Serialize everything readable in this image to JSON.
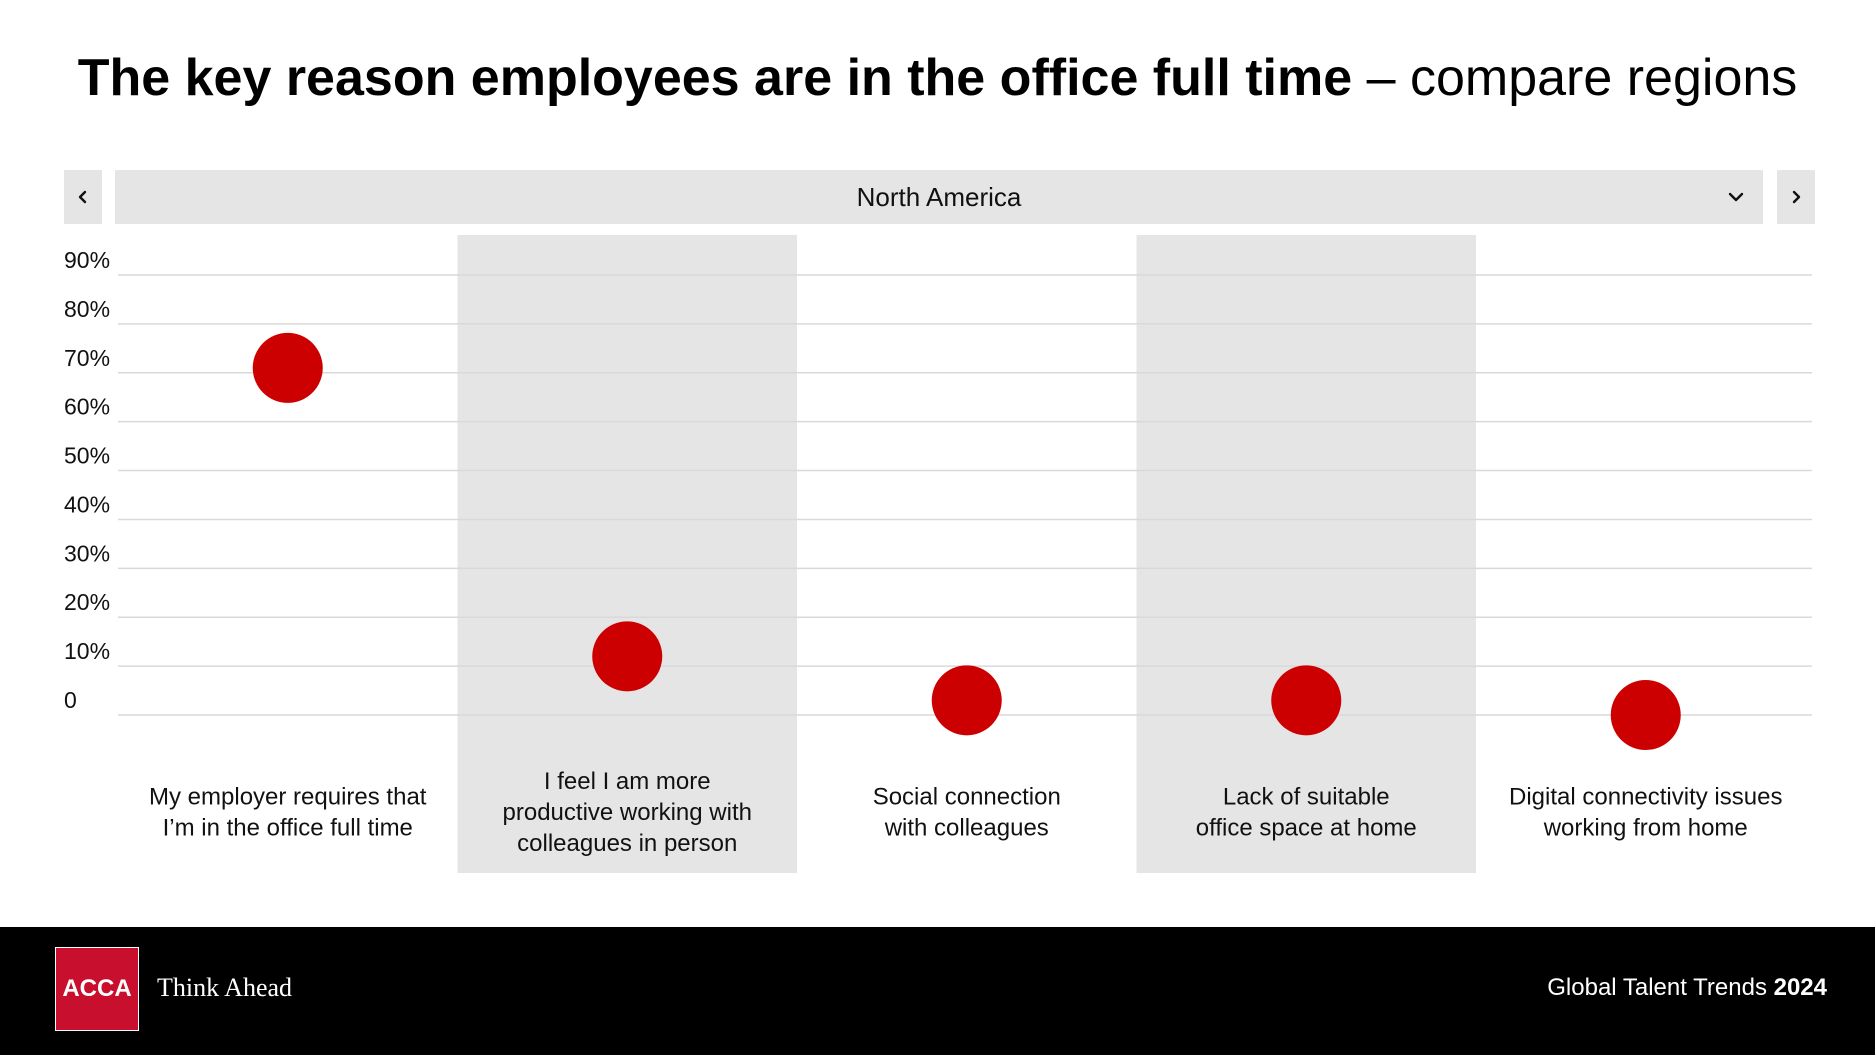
{
  "header": {
    "title_bold": "The key reason employees are in the office full time",
    "title_rest": " – compare regions"
  },
  "region_selector": {
    "selected": "North America",
    "prev_icon": "chevron-left-icon",
    "next_icon": "chevron-right-icon",
    "dropdown_icon": "chevron-down-icon"
  },
  "chart_data": {
    "type": "scatter",
    "categories": [
      "My employer requires that I’m in the office full time",
      "I feel I am more productive working with colleagues in person",
      "Social connection with colleagues",
      "Lack of suitable office space at home",
      "Digital connectivity issues working from home"
    ],
    "category_lines": [
      [
        "My employer requires that",
        "I’m in the office full time"
      ],
      [
        "I feel I am more",
        "productive working with",
        "colleagues in person"
      ],
      [
        "Social connection",
        "with colleagues"
      ],
      [
        "Lack of suitable",
        "office space at home"
      ],
      [
        "Digital connectivity issues",
        "working from home"
      ]
    ],
    "values": [
      71,
      12,
      3,
      3,
      0
    ],
    "ylim": [
      0,
      90
    ],
    "yticks": [
      0,
      10,
      20,
      30,
      40,
      50,
      60,
      70,
      80,
      90
    ],
    "ytick_labels": [
      "0",
      "10%",
      "20%",
      "30%",
      "40%",
      "50%",
      "60%",
      "70%",
      "80%",
      "90%"
    ],
    "grid": true,
    "alternating_column_shading": true,
    "marker_color": "#cc0000",
    "shade_color": "#e5e5e5",
    "grid_color": "#d9d9d9"
  },
  "footer": {
    "logo_text": "ACCA",
    "tagline": "Think Ahead",
    "report_name": "Global Talent Trends ",
    "report_year": "2024",
    "logo_color": "#c8102e"
  }
}
